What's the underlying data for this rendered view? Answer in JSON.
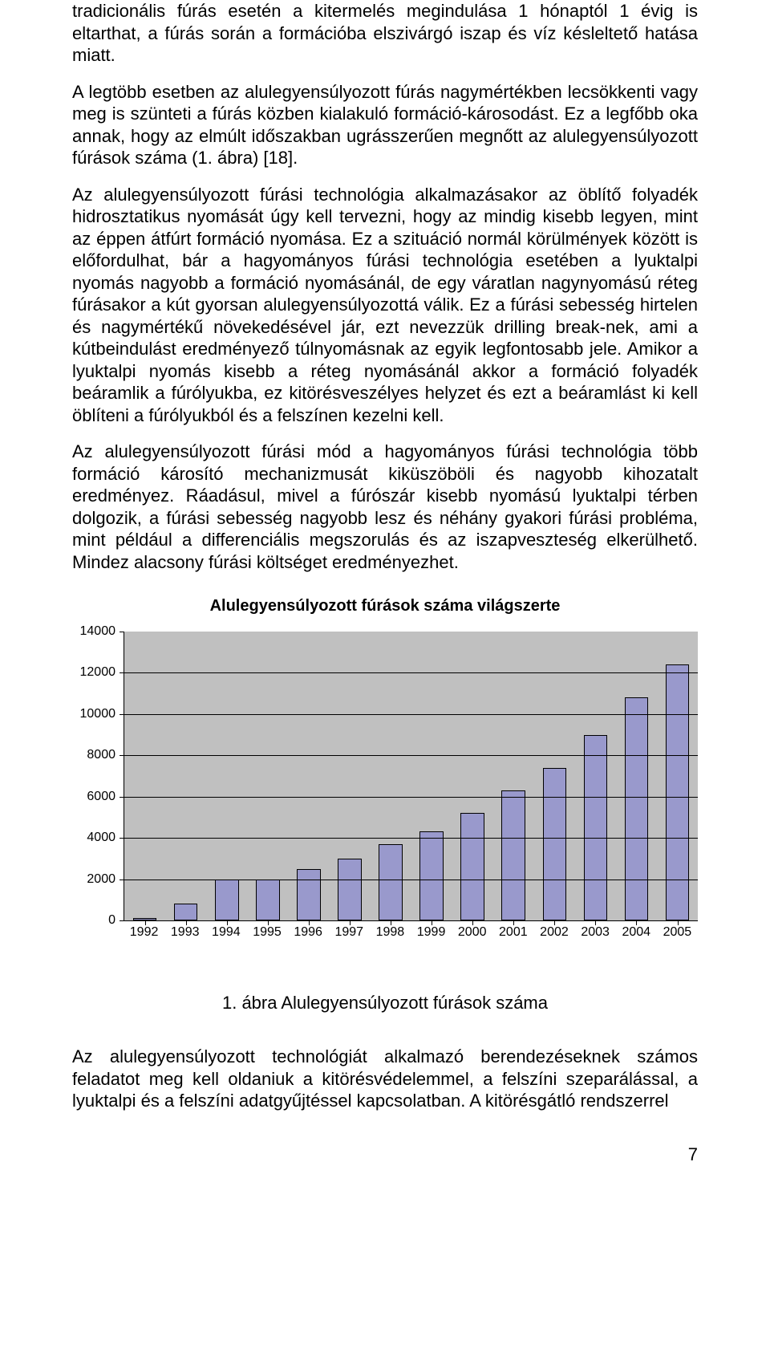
{
  "paragraphs": {
    "p1": "tradicionális fúrás esetén a kitermelés megindulása 1 hónaptól 1 évig is eltarthat, a fúrás során a formációba elszivárgó iszap és víz késleltető hatása miatt.",
    "p2": "A legtöbb esetben az alulegyensúlyozott fúrás nagymértékben lecsökkenti vagy meg is szünteti a fúrás közben kialakuló formáció-károsodást. Ez a legfőbb oka annak, hogy az elmúlt időszakban ugrásszerűen megnőtt az alulegyensúlyozott fúrások száma (1. ábra) [18].",
    "p3": "Az alulegyensúlyozott fúrási technológia alkalmazásakor az öblítő folyadék hidrosztatikus nyomását úgy kell tervezni, hogy az mindig kisebb legyen, mint az éppen átfúrt formáció nyomása. Ez a szituáció normál körülmények között is előfordulhat, bár a hagyományos fúrási technológia esetében a lyuktalpi nyomás nagyobb a formáció nyomásánál, de egy váratlan nagynyomású réteg fúrásakor a kút gyorsan alulegyensúlyozottá válik. Ez a fúrási sebesség hirtelen és nagymértékű növekedésével jár, ezt nevezzük drilling break-nek, ami a kútbeindulást eredményező túlnyomásnak az egyik legfontosabb jele. Amikor a lyuktalpi nyomás kisebb a réteg nyomásánál akkor a formáció folyadék beáramlik a fúrólyukba, ez kitörésveszélyes helyzet és ezt a beáramlást ki kell öblíteni a fúrólyukból és a felszínen kezelni kell.",
    "p4": "Az alulegyensúlyozott fúrási mód a hagyományos fúrási technológia több formáció károsító mechanizmusát kiküszöböli és nagyobb kihozatalt eredményez. Ráadásul, mivel a fúrószár kisebb nyomású lyuktalpi térben dolgozik, a fúrási sebesség nagyobb lesz és néhány gyakori fúrási probléma, mint például a differenciális megszorulás és az iszapveszteség elkerülhető. Mindez alacsony fúrási költséget eredményezhet.",
    "p5": "Az alulegyensúlyozott technológiát alkalmazó berendezéseknek számos feladatot meg kell oldaniuk a kitörésvédelemmel, a felszíni szeparálással, a lyuktalpi és a felszíni adatgyűjtéssel kapcsolatban. A kitörésgátló rendszerrel"
  },
  "chart": {
    "title": "Alulegyensúlyozott fúrások száma világszerte",
    "type": "bar",
    "categories": [
      "1992",
      "1993",
      "1994",
      "1995",
      "1996",
      "1997",
      "1998",
      "1999",
      "2000",
      "2001",
      "2002",
      "2003",
      "2004",
      "2005"
    ],
    "values": [
      100,
      800,
      2000,
      2000,
      2500,
      3000,
      3700,
      4300,
      5200,
      6300,
      7400,
      9000,
      10800,
      12400
    ],
    "bar_color": "#9999cc",
    "bar_border": "#000000",
    "background_color": "#c0c0c0",
    "grid_color": "#000000",
    "title_fontsize": 20,
    "tick_fontsize": 16,
    "ylim": [
      0,
      14000
    ],
    "ytick_step": 2000,
    "bar_width": 0.58
  },
  "caption": "1. ábra Alulegyensúlyozott fúrások száma",
  "page_number": "7"
}
